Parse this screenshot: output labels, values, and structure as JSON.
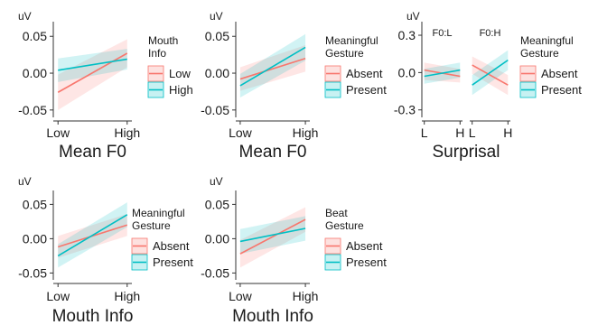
{
  "colors": {
    "series_a": "#F8766D",
    "series_b": "#00BFC4",
    "axis": "#333333"
  },
  "chart_data": [
    {
      "type": "line",
      "panel": "row1-col1",
      "unit_label": "uV",
      "xlabel": "Mean F0",
      "x_ticks": [
        "Low",
        "High"
      ],
      "ylim": [
        -0.06,
        0.065
      ],
      "y_ticks": [
        -0.05,
        0.0,
        0.05
      ],
      "y_tick_labels": [
        "-0.05",
        "0.00",
        "0.05"
      ],
      "legend_title": "Mouth Info",
      "legend_title_lines": [
        "Mouth",
        "Info"
      ],
      "grid": false,
      "series": [
        {
          "name": "Low",
          "color": "#F8766D",
          "x": [
            -1,
            1
          ],
          "y": [
            -0.026,
            0.027
          ],
          "ci_lower": [
            -0.05,
            0.008
          ],
          "ci_upper": [
            -0.002,
            0.046
          ]
        },
        {
          "name": "High",
          "color": "#00BFC4",
          "x": [
            -1,
            1
          ],
          "y": [
            0.004,
            0.019
          ],
          "ci_lower": [
            -0.012,
            0.005
          ],
          "ci_upper": [
            0.02,
            0.033
          ]
        }
      ]
    },
    {
      "type": "line",
      "panel": "row1-col2",
      "unit_label": "uV",
      "xlabel": "Mean F0",
      "x_ticks": [
        "Low",
        "High"
      ],
      "ylim": [
        -0.06,
        0.065
      ],
      "y_ticks": [
        -0.05,
        0.0,
        0.05
      ],
      "y_tick_labels": [
        "-0.05",
        "0.00",
        "0.05"
      ],
      "legend_title": "Meaningful Gesture",
      "legend_title_lines": [
        "Meaningful",
        "Gesture"
      ],
      "grid": false,
      "series": [
        {
          "name": "Absent",
          "color": "#F8766D",
          "x": [
            -1,
            1
          ],
          "y": [
            -0.008,
            0.02
          ],
          "ci_lower": [
            -0.024,
            0.002
          ],
          "ci_upper": [
            0.008,
            0.038
          ]
        },
        {
          "name": "Present",
          "color": "#00BFC4",
          "x": [
            -1,
            1
          ],
          "y": [
            -0.017,
            0.035
          ],
          "ci_lower": [
            -0.033,
            0.017
          ],
          "ci_upper": [
            -0.001,
            0.053
          ]
        }
      ]
    },
    {
      "type": "line",
      "panel": "row1-col3",
      "unit_label": "uV",
      "xlabel": "Surprisal",
      "facets": [
        "F0:L",
        "F0:H"
      ],
      "x_ticks": [
        "L",
        "H"
      ],
      "ylim": [
        -0.36,
        0.38
      ],
      "y_ticks": [
        -0.3,
        0.0,
        0.3
      ],
      "y_tick_labels": [
        "-0.3",
        "0.0",
        "0.3"
      ],
      "legend_title": "Meaningful Gesture",
      "legend_title_lines": [
        "Meaningful",
        "Gesture"
      ],
      "grid": false,
      "series": [
        {
          "name": "Absent",
          "color": "#F8766D",
          "facet_values": [
            {
              "x": [
                -1,
                1
              ],
              "y": [
                0.02,
                -0.03
              ],
              "ci_lower": [
                -0.06,
                -0.08
              ],
              "ci_upper": [
                0.08,
                0.03
              ]
            },
            {
              "x": [
                -1,
                1
              ],
              "y": [
                0.06,
                -0.1
              ],
              "ci_lower": [
                -0.01,
                -0.18
              ],
              "ci_upper": [
                0.13,
                -0.02
              ]
            }
          ]
        },
        {
          "name": "Present",
          "color": "#00BFC4",
          "facet_values": [
            {
              "x": [
                -1,
                1
              ],
              "y": [
                -0.03,
                0.02
              ],
              "ci_lower": [
                -0.09,
                -0.04
              ],
              "ci_upper": [
                0.03,
                0.08
              ]
            },
            {
              "x": [
                -1,
                1
              ],
              "y": [
                -0.1,
                0.1
              ],
              "ci_lower": [
                -0.18,
                0.02
              ],
              "ci_upper": [
                -0.02,
                0.18
              ]
            }
          ]
        }
      ]
    },
    {
      "type": "line",
      "panel": "row2-col1",
      "unit_label": "uV",
      "xlabel": "Mouth Info",
      "x_ticks": [
        "Low",
        "High"
      ],
      "ylim": [
        -0.06,
        0.065
      ],
      "y_ticks": [
        -0.05,
        0.0,
        0.05
      ],
      "y_tick_labels": [
        "-0.05",
        "0.00",
        "0.05"
      ],
      "legend_title": "Meaningful Gesture",
      "legend_title_lines": [
        "Meaningful",
        "Gesture"
      ],
      "grid": false,
      "series": [
        {
          "name": "Absent",
          "color": "#F8766D",
          "x": [
            -1,
            1
          ],
          "y": [
            -0.012,
            0.02
          ],
          "ci_lower": [
            -0.028,
            0.004
          ],
          "ci_upper": [
            0.004,
            0.036
          ]
        },
        {
          "name": "Present",
          "color": "#00BFC4",
          "x": [
            -1,
            1
          ],
          "y": [
            -0.025,
            0.035
          ],
          "ci_lower": [
            -0.042,
            0.017
          ],
          "ci_upper": [
            -0.008,
            0.053
          ]
        }
      ]
    },
    {
      "type": "line",
      "panel": "row2-col2",
      "unit_label": "uV",
      "xlabel": "Mouth Info",
      "x_ticks": [
        "Low",
        "High"
      ],
      "ylim": [
        -0.06,
        0.065
      ],
      "y_ticks": [
        -0.05,
        0.0,
        0.05
      ],
      "y_tick_labels": [
        "-0.05",
        "0.00",
        "0.05"
      ],
      "legend_title": "Beat Gesture",
      "legend_title_lines": [
        "Beat",
        "Gesture"
      ],
      "grid": false,
      "series": [
        {
          "name": "Absent",
          "color": "#F8766D",
          "x": [
            -1,
            1
          ],
          "y": [
            -0.022,
            0.028
          ],
          "ci_lower": [
            -0.042,
            0.01
          ],
          "ci_upper": [
            -0.002,
            0.046
          ]
        },
        {
          "name": "Present",
          "color": "#00BFC4",
          "x": [
            -1,
            1
          ],
          "y": [
            -0.004,
            0.015
          ],
          "ci_lower": [
            -0.022,
            -0.003
          ],
          "ci_upper": [
            0.014,
            0.033
          ]
        }
      ]
    }
  ]
}
